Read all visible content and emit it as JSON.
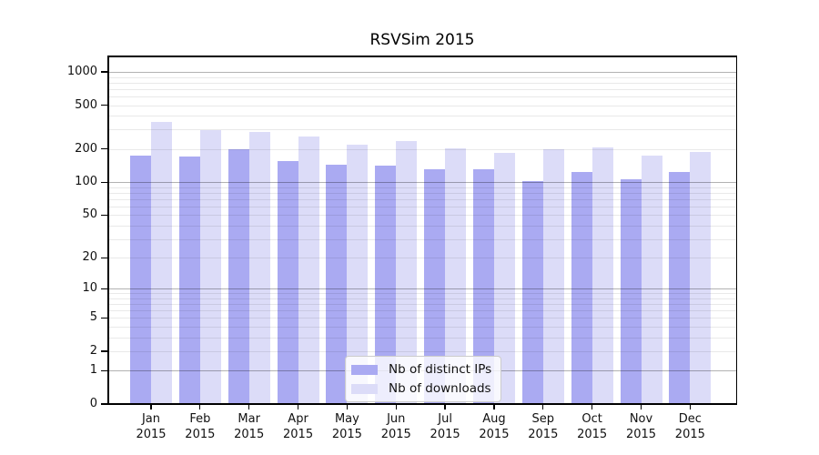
{
  "figure": {
    "background_color": "#ffffff",
    "axis_color": "#000000",
    "major_grid_color": "#b4b4b4",
    "minor_grid_color": "#e9e9e9"
  },
  "chart_data": {
    "type": "bar",
    "title": "RSVSim 2015",
    "x_categories": [
      "Jan",
      "Feb",
      "Mar",
      "Apr",
      "May",
      "Jun",
      "Jul",
      "Aug",
      "Sep",
      "Oct",
      "Nov",
      "Dec"
    ],
    "x_year": "2015",
    "series": [
      {
        "name": "Nb of distinct IPs",
        "color": "#aaaaf2",
        "values": [
          174,
          170,
          200,
          157,
          143,
          141,
          132,
          130,
          102,
          124,
          107,
          124
        ]
      },
      {
        "name": "Nb of downloads",
        "color": "#dcdcf8",
        "values": [
          350,
          295,
          284,
          261,
          220,
          238,
          205,
          186,
          200,
          206,
          176,
          190
        ]
      }
    ],
    "y_scale": "log1p",
    "y_ticks": [
      0,
      1,
      2,
      5,
      10,
      20,
      50,
      100,
      200,
      500,
      1000
    ],
    "y_major_gridlines": [
      1,
      10,
      100,
      1000
    ],
    "y_minor_gridlines": [
      2,
      3,
      4,
      5,
      6,
      7,
      8,
      9,
      20,
      30,
      40,
      50,
      60,
      70,
      80,
      90,
      200,
      300,
      400,
      500,
      600,
      700,
      800,
      900
    ],
    "ylim": [
      0,
      1412
    ],
    "grid": true,
    "legend_position": "lower-center",
    "legend_entries": [
      "Nb of distinct IPs",
      "Nb of downloads"
    ]
  }
}
